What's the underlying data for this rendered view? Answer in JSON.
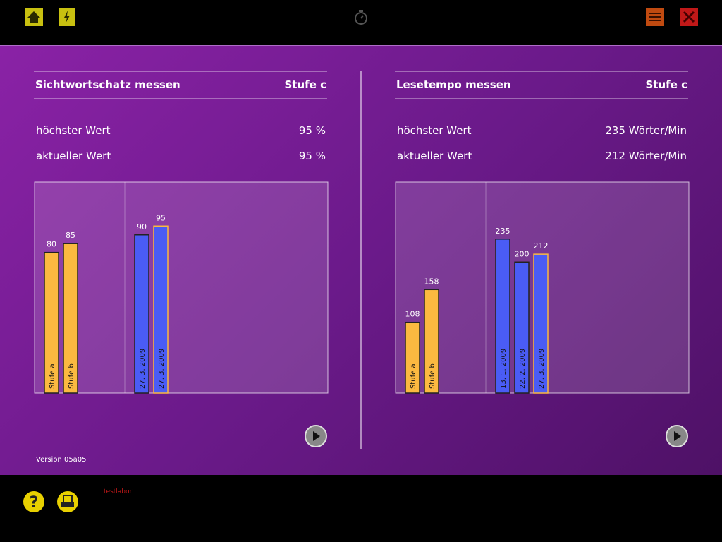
{
  "panels": [
    {
      "title": "Sichtwortschatz messen",
      "level": "Stufe c",
      "rows": [
        {
          "label": "höchster Wert",
          "value": "95 %"
        },
        {
          "label": "aktueller Wert",
          "value": "95 %"
        }
      ],
      "chart": {
        "type": "bar",
        "ylim": [
          0,
          120
        ],
        "groups": [
          {
            "color": "#fbb940",
            "categories": [
              "Stufe a",
              "Stufe b"
            ],
            "values": [
              80,
              85
            ]
          },
          {
            "color": "#4a5cf5",
            "categories": [
              "27. 3. 2009",
              "27. 3. 2009"
            ],
            "values": [
              90,
              95
            ]
          }
        ]
      }
    },
    {
      "title": "Lesetempo messen",
      "level": "Stufe c",
      "rows": [
        {
          "label": "höchster Wert",
          "value": "235 Wörter/Min"
        },
        {
          "label": "aktueller Wert",
          "value": "212 Wörter/Min"
        }
      ],
      "chart": {
        "type": "bar",
        "ylim": [
          0,
          322
        ],
        "groups": [
          {
            "color": "#fbb940",
            "categories": [
              "Stufe a",
              "Stufe b"
            ],
            "values": [
              108,
              158
            ]
          },
          {
            "color": "#4a5cf5",
            "categories": [
              "13. 1. 2009",
              "22. 2. 2009",
              "27. 3. 2009"
            ],
            "values": [
              235,
              200,
              212
            ]
          }
        ]
      }
    }
  ],
  "version": "Version 05a05",
  "footer_label": "testlabor"
}
